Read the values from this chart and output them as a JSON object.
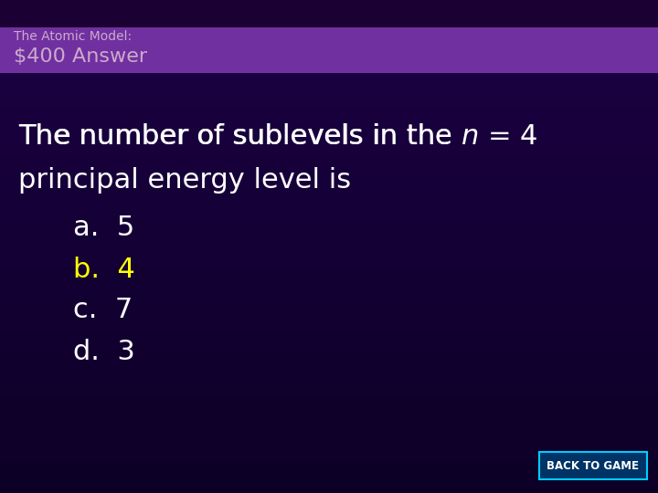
{
  "header_top_color": "#1a0033",
  "header_bg_color": "#7030a0",
  "header_subtitle": "The Atomic Model:",
  "header_title": "$400 Answer",
  "body_bg_top": "#1a0040",
  "body_bg_bottom": "#0d0026",
  "question_line1_normal": "The number of sublevels in the ",
  "question_line1_italic": "n",
  "question_line1_rest": " = 4",
  "question_line2": "principal energy level is",
  "answers": [
    "a.  5",
    "b.  4",
    "c.  7",
    "d.  3"
  ],
  "answer_colors": [
    "#ffffff",
    "#ffff00",
    "#ffffff",
    "#ffffff"
  ],
  "question_color": "#ffffff",
  "button_text": "BACK TO GAME",
  "button_bg": "#003366",
  "button_border": "#00ccff",
  "button_text_color": "#ffffff",
  "header_subtitle_color": "#ccaacc",
  "header_title_color": "#ccaacc",
  "fig_width": 7.2,
  "fig_height": 5.4,
  "dpi": 100
}
